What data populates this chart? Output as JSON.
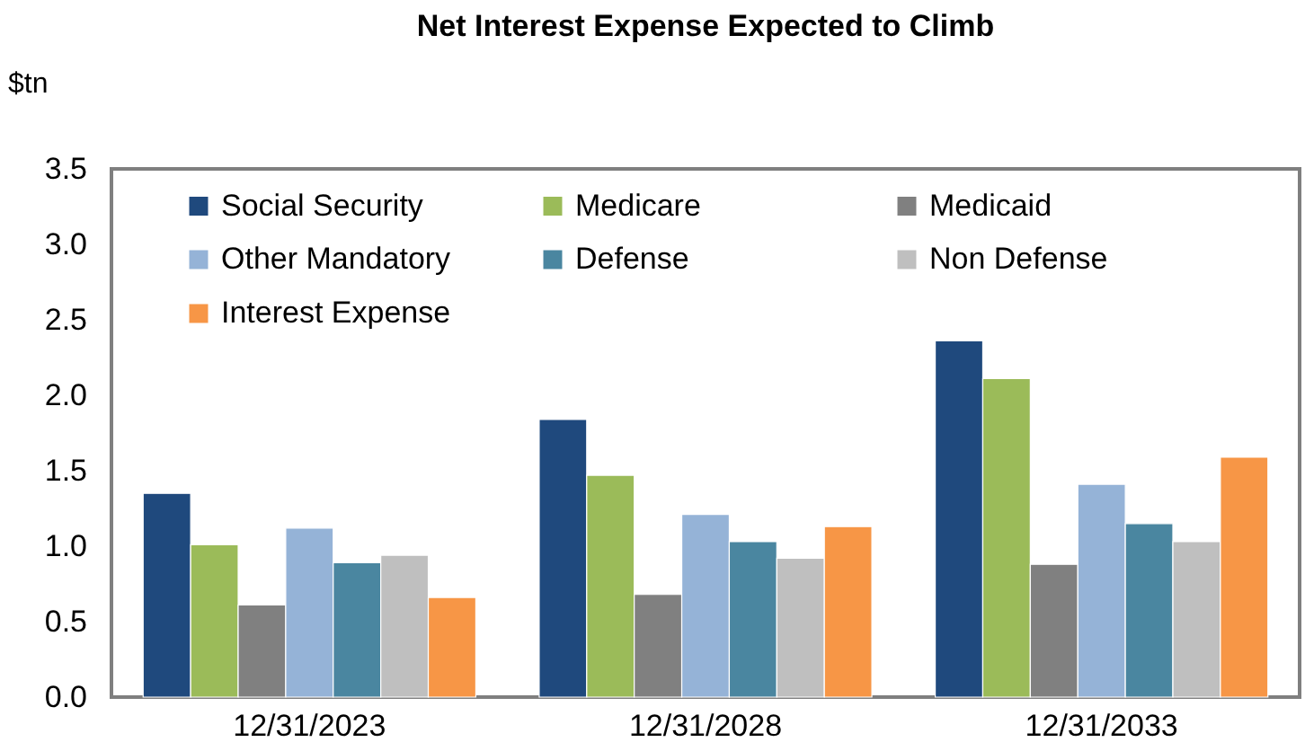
{
  "chart_data": {
    "type": "bar",
    "title": "Net Interest Expense Expected to Climb",
    "ylabel": "$tn",
    "categories": [
      "12/31/2023",
      "12/31/2028",
      "12/31/2033"
    ],
    "series": [
      {
        "name": "Social Security",
        "color": "#1f497d",
        "values": [
          1.35,
          1.84,
          2.36
        ]
      },
      {
        "name": "Medicare",
        "color": "#9bbb59",
        "values": [
          1.01,
          1.47,
          2.11
        ]
      },
      {
        "name": "Medicaid",
        "color": "#808080",
        "values": [
          0.61,
          0.68,
          0.88
        ]
      },
      {
        "name": "Other Mandatory",
        "color": "#95b3d7",
        "values": [
          1.12,
          1.21,
          1.41
        ]
      },
      {
        "name": "Defense",
        "color": "#4a86a0",
        "values": [
          0.89,
          1.03,
          1.15
        ]
      },
      {
        "name": "Non Defense",
        "color": "#bfbfbf",
        "values": [
          0.94,
          0.92,
          1.03
        ]
      },
      {
        "name": "Interest Expense",
        "color": "#f79646",
        "values": [
          0.66,
          1.13,
          1.59
        ]
      }
    ],
    "ylim": [
      0,
      3.5
    ],
    "yticks": [
      {
        "value": 0,
        "label": "0.0"
      },
      {
        "value": 0.5,
        "label": "0.5"
      },
      {
        "value": 1,
        "label": "1.0"
      },
      {
        "value": 1.5,
        "label": "1.5"
      },
      {
        "value": 2,
        "label": "2.0"
      },
      {
        "value": 2.5,
        "label": "2.5"
      },
      {
        "value": 3,
        "label": "3.0"
      },
      {
        "value": 3.5,
        "label": "3.5"
      }
    ],
    "grid": false,
    "legend": "top"
  }
}
